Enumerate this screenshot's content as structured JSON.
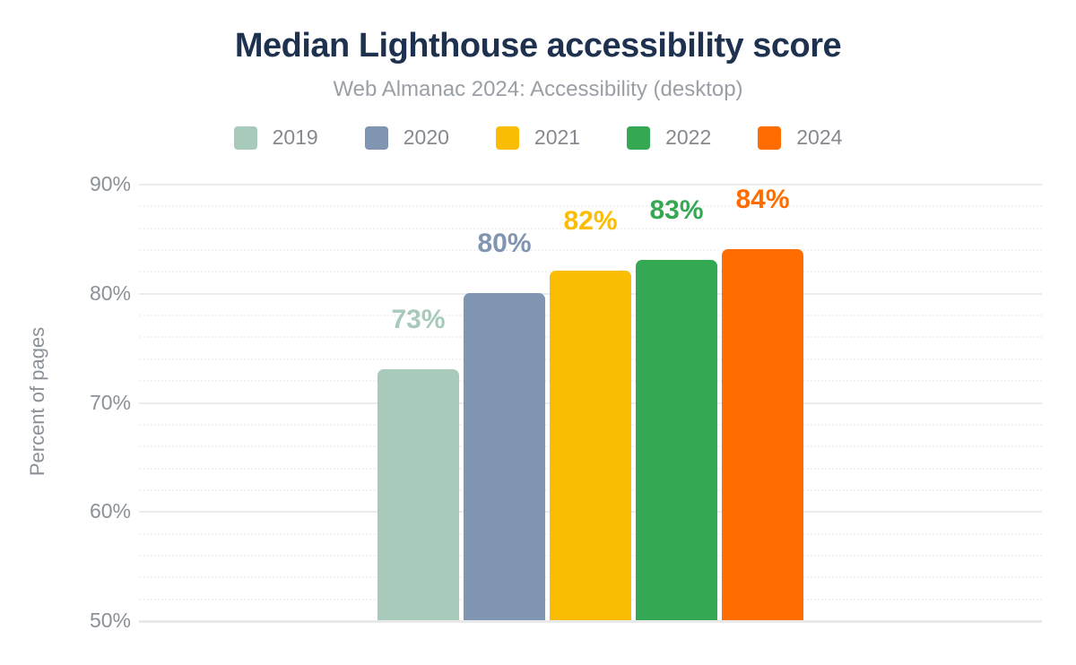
{
  "title": "Median Lighthouse accessibility score",
  "subtitle": "Web Almanac 2024: Accessibility (desktop)",
  "chart_data": {
    "type": "bar",
    "title": "Median Lighthouse accessibility score",
    "subtitle": "Web Almanac 2024: Accessibility (desktop)",
    "categories": [
      "2019",
      "2020",
      "2021",
      "2022",
      "2024"
    ],
    "values": [
      73,
      80,
      82,
      83,
      84
    ],
    "value_labels": [
      "73%",
      "80%",
      "82%",
      "83%",
      "84%"
    ],
    "series_colors": [
      "#a8cabb",
      "#8095b2",
      "#fbbc04",
      "#34a853",
      "#ff6d00"
    ],
    "xlabel": "",
    "ylabel": "Percent of pages",
    "ylim": [
      50,
      90
    ],
    "ytick_major_step": 10,
    "ytick_minor_step": 2,
    "ytick_labels": [
      "50%",
      "60%",
      "70%",
      "80%",
      "90%"
    ],
    "grid": true,
    "legend_position": "top"
  },
  "theme": {
    "background": "#ffffff",
    "title_color": "#1e3250",
    "subtitle_color": "#9aa0a6",
    "legend_text_color": "#85898f",
    "axis_text_color": "#8b9198",
    "grid_major_color": "#ececec",
    "grid_minor_color": "#f2f2f2",
    "baseline_color": "#e9e9e9"
  }
}
